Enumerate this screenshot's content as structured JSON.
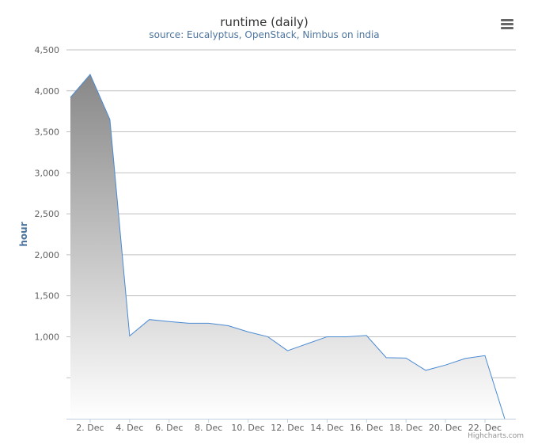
{
  "chart_data": {
    "type": "area",
    "title": "runtime (daily)",
    "subtitle": "source: Eucalyptus, OpenStack, Nimbus on india",
    "ylabel": "hour",
    "xlabel": "",
    "y_tick_labels": [
      "1,000",
      "1,500",
      "2,000",
      "2,500",
      "3,000",
      "3,500",
      "4,000",
      "4,500"
    ],
    "x_tick_labels": [
      "2. Dec",
      "4. Dec",
      "6. Dec",
      "8. Dec",
      "10. Dec",
      "12. Dec",
      "14. Dec",
      "16. Dec",
      "18. Dec",
      "20. Dec",
      "22. Dec"
    ],
    "ylim": [
      0,
      4500
    ],
    "grid": true,
    "legend": "none",
    "series": [
      {
        "x": [
          "1. Dec",
          "2. Dec",
          "3. Dec",
          "4. Dec",
          "5. Dec",
          "6. Dec",
          "7. Dec",
          "8. Dec",
          "9. Dec",
          "10. Dec",
          "11. Dec",
          "12. Dec",
          "13. Dec",
          "14. Dec",
          "15. Dec",
          "16. Dec",
          "17. Dec",
          "18. Dec",
          "19. Dec",
          "20. Dec",
          "21. Dec",
          "22. Dec",
          "23. Dec"
        ],
        "values": [
          3920,
          4200,
          3650,
          1010,
          1210,
          1185,
          1165,
          1165,
          1135,
          1060,
          1000,
          830,
          915,
          1000,
          1000,
          1015,
          745,
          740,
          590,
          655,
          735,
          770,
          0
        ]
      }
    ],
    "colors": {
      "line": "#4a8ad4",
      "fill_top": "#888888",
      "fill_bottom": "#ffffff",
      "grid": "#c0c0c0",
      "title": "#333333",
      "subtitle": "#4d759e",
      "axis_title": "#4d759e"
    }
  },
  "menu": {
    "icon": "hamburger-menu-icon"
  },
  "credits": "Highcharts.com"
}
